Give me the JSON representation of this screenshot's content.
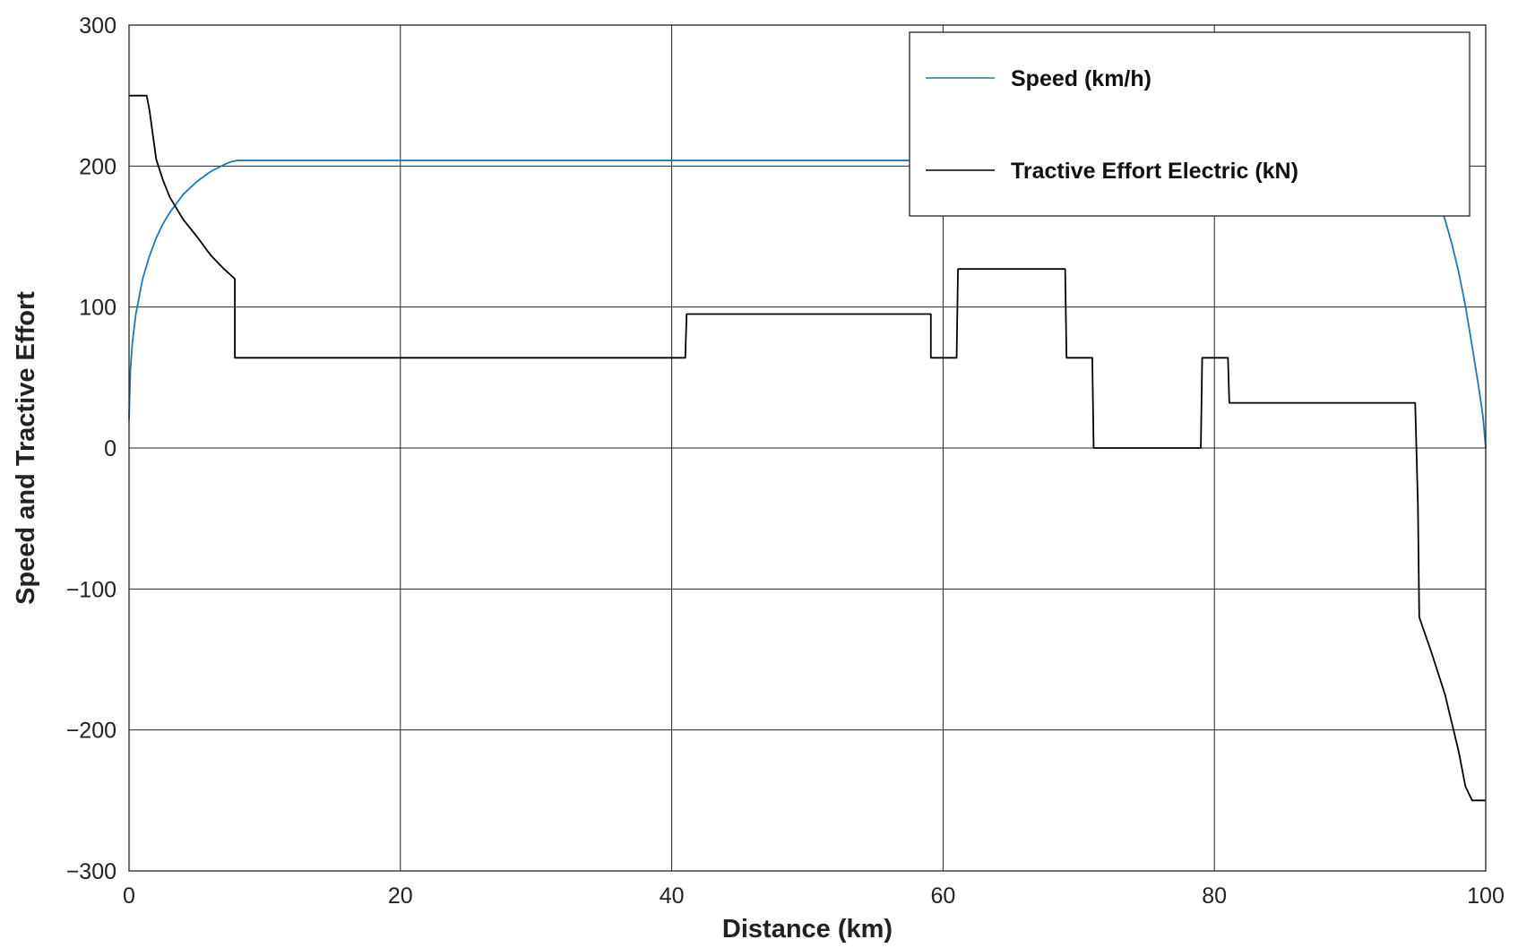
{
  "chart_data": {
    "type": "line",
    "xlabel": "Distance (km)",
    "ylabel": "Speed and Tractive Effort",
    "xlim": [
      0,
      100
    ],
    "ylim": [
      -300,
      300
    ],
    "xticks": [
      0,
      20,
      40,
      60,
      80,
      100
    ],
    "yticks": [
      -300,
      -200,
      -100,
      0,
      100,
      200,
      300
    ],
    "xtick_labels": [
      "0",
      "20",
      "40",
      "60",
      "80",
      "100"
    ],
    "ytick_labels": [
      "−300",
      "−200",
      "−100",
      "0",
      "100",
      "200",
      "300"
    ],
    "grid": true,
    "legend_position": "top-right",
    "series": [
      {
        "name": "Speed (km/h)",
        "color": "#1f77b4",
        "x": [
          0,
          0.1,
          0.25,
          0.5,
          1,
          1.5,
          2,
          2.5,
          3,
          4,
          5,
          6,
          7,
          7.5,
          8,
          10,
          20,
          30,
          40,
          50,
          60,
          70,
          80,
          90,
          95,
          95.5,
          96,
          96.5,
          97,
          97.5,
          98,
          98.5,
          99,
          99.5,
          99.8,
          100
        ],
        "values": [
          20,
          55,
          75,
          95,
          120,
          136,
          149,
          159,
          167,
          180,
          189,
          196,
          201,
          203,
          204,
          204,
          204,
          204,
          204,
          204,
          204,
          204,
          204,
          204,
          204,
          198,
          188,
          176,
          162,
          145,
          125,
          101,
          72,
          42,
          22,
          0
        ]
      },
      {
        "name": "Tractive Effort Electric (kN)",
        "color": "#000000",
        "x": [
          0,
          1.3,
          1.5,
          2,
          2.5,
          3,
          3.5,
          4,
          5,
          6,
          7,
          7.8,
          7.8,
          8.0,
          41.0,
          41.1,
          59.1,
          59.1,
          61.0,
          61.1,
          69.0,
          69.1,
          71.0,
          71.1,
          79.0,
          79.1,
          81.0,
          81.1,
          94.8,
          95.0,
          95.1,
          96,
          97,
          98,
          98.5,
          99,
          99.3,
          100
        ],
        "values": [
          250,
          250,
          240,
          205,
          190,
          178,
          170,
          162,
          150,
          137,
          127,
          120,
          64,
          64,
          64,
          95,
          95,
          64,
          64,
          127,
          127,
          64,
          64,
          0,
          0,
          64,
          64,
          32,
          32,
          -40,
          -120,
          -145,
          -175,
          -215,
          -240,
          -250,
          -250,
          -250
        ]
      }
    ]
  }
}
